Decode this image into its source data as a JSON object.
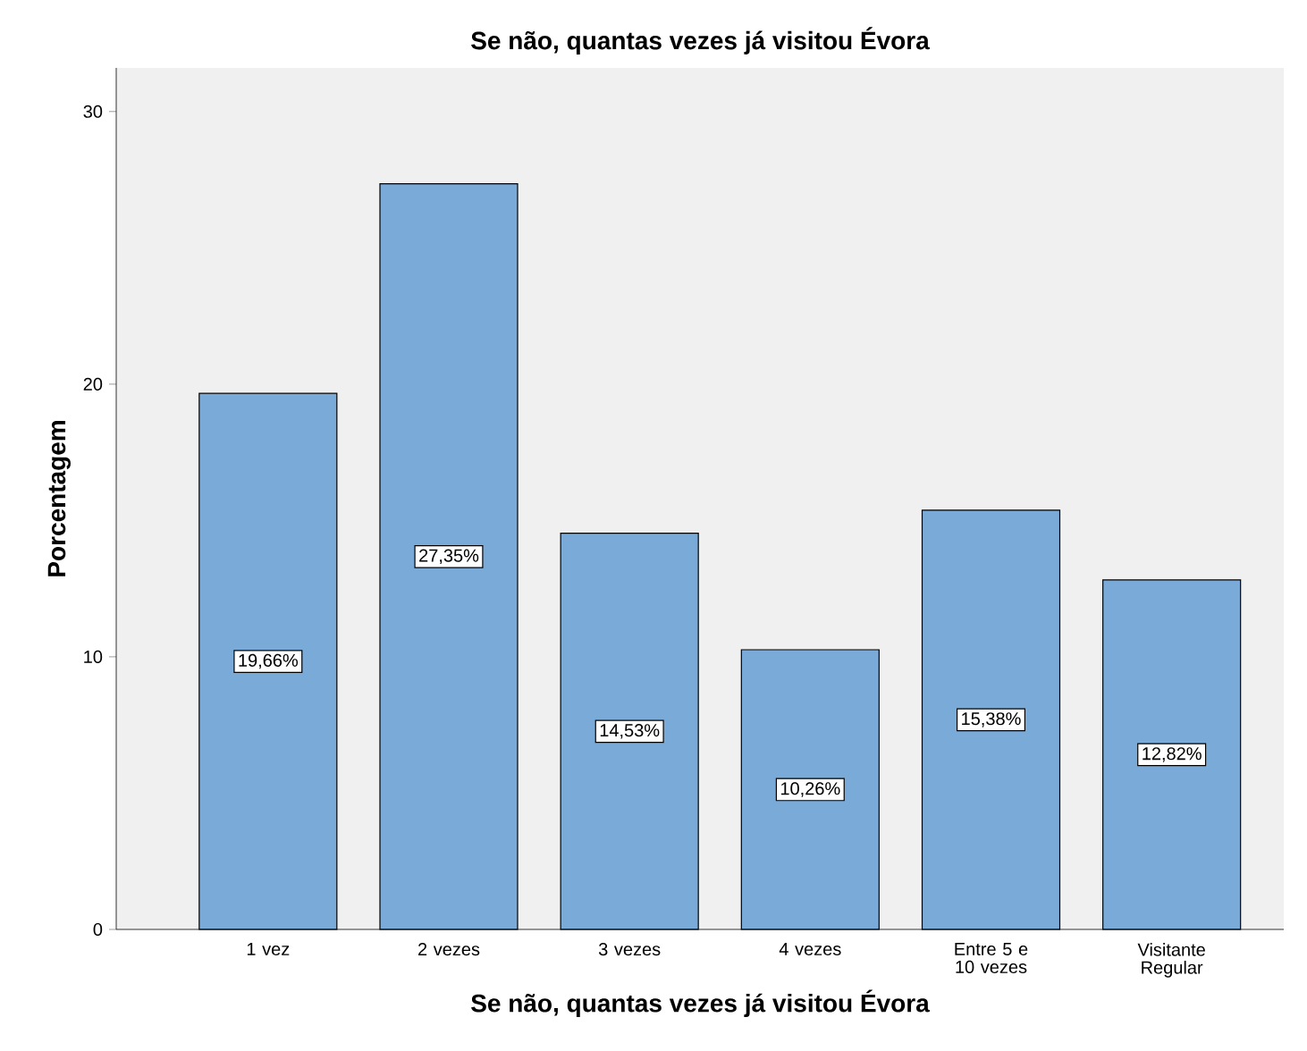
{
  "chart_data": {
    "type": "bar",
    "title": "Se não, quantas vezes já visitou Évora",
    "xlabel": "Se não, quantas vezes já visitou Évora",
    "ylabel": "Porcentagem",
    "categories": [
      "1 vez",
      "2 vezes",
      "3 vezes",
      "4 vezes",
      "Entre 5 e 10 vezes",
      "Visitante Regular"
    ],
    "values": [
      19.66,
      27.35,
      14.53,
      10.26,
      15.38,
      12.82
    ],
    "value_labels": [
      "19,66%",
      "27,35%",
      "14,53%",
      "10,26%",
      "15,38%",
      "12,82%"
    ],
    "color": "#7aaad8",
    "ylim": [
      0,
      31.6
    ],
    "yticks": [
      0,
      10,
      20,
      30
    ]
  }
}
